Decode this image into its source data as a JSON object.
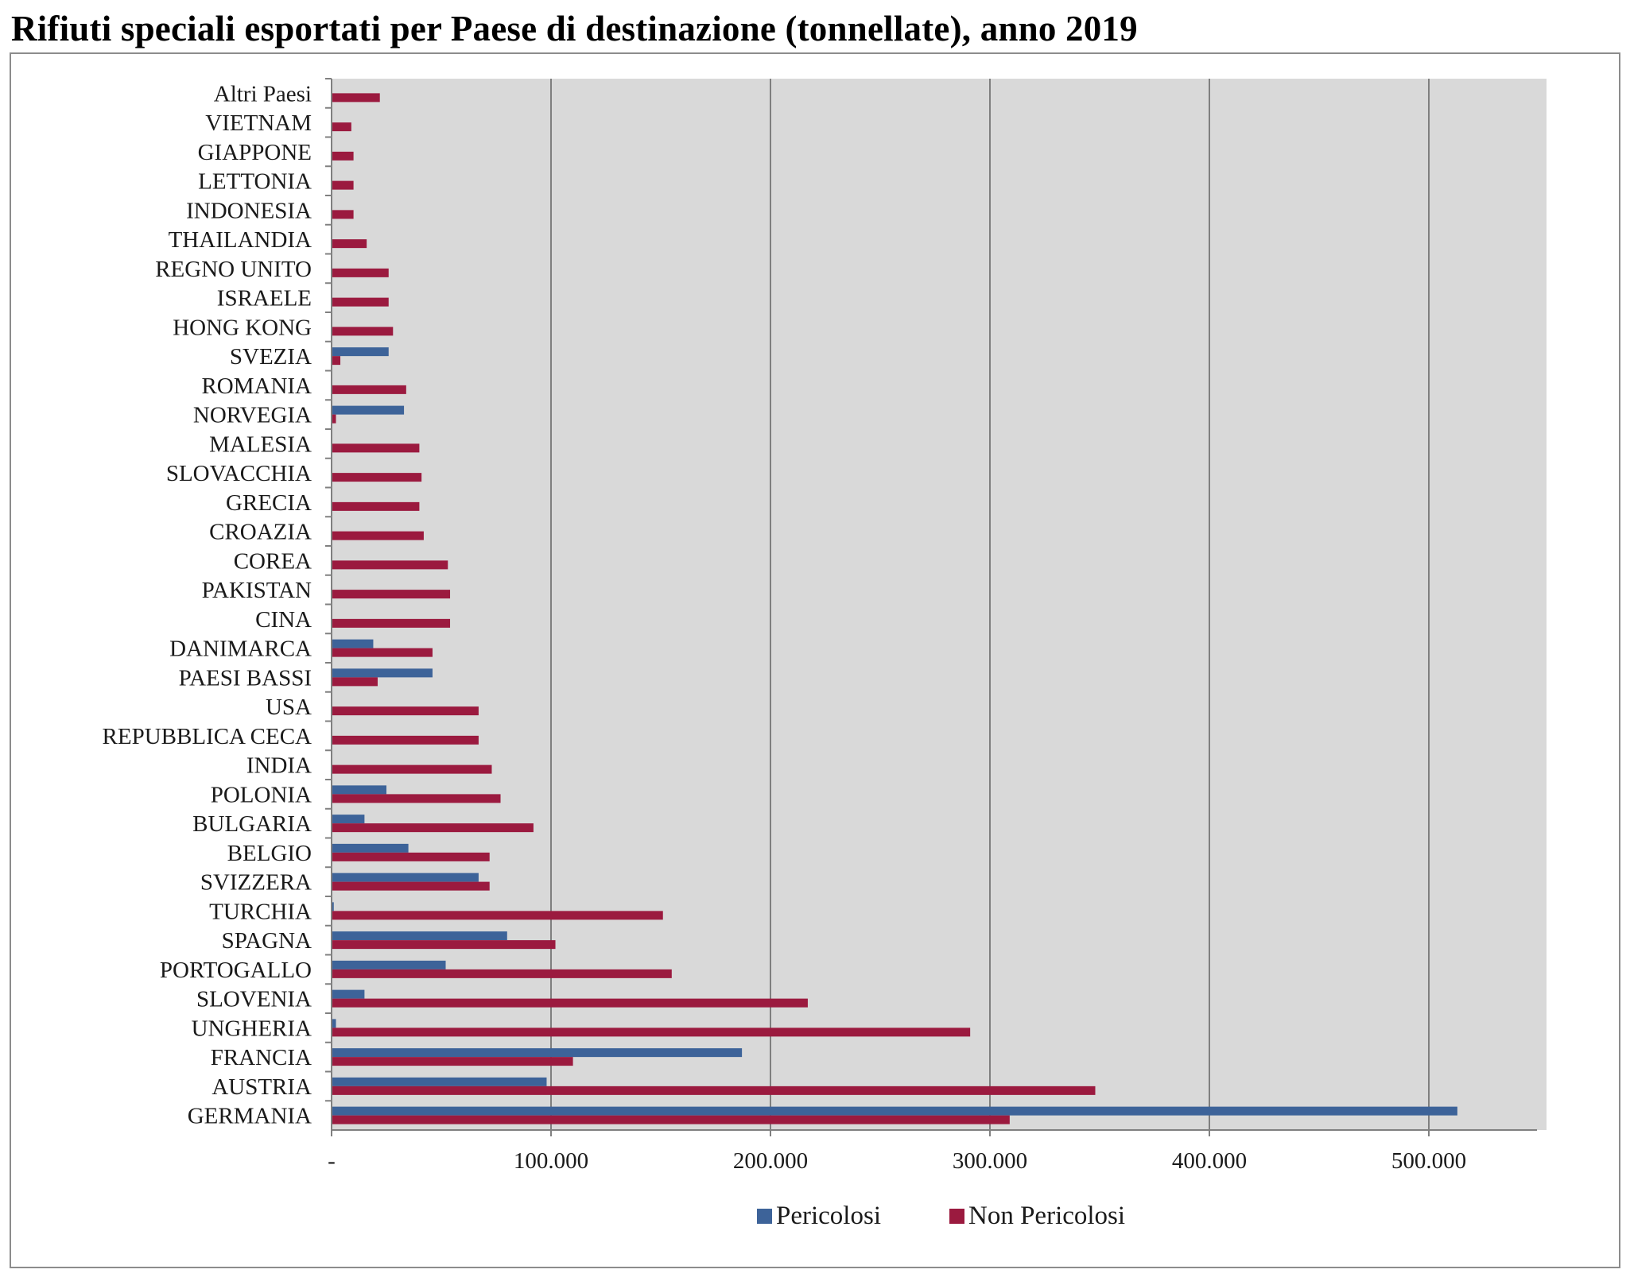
{
  "chart_data": {
    "type": "bar",
    "orientation": "horizontal",
    "title": "Rifiuti speciali esportati per Paese di destinazione (tonnellate), anno 2019",
    "xlabel": "",
    "ylabel": "",
    "xlim": [
      0,
      550000
    ],
    "x_ticks": [
      0,
      100000,
      200000,
      300000,
      400000,
      500000
    ],
    "x_tick_labels": [
      "-",
      "100.000",
      "200.000",
      "300.000",
      "400.000",
      "500.000"
    ],
    "grid": "vertical",
    "legend_position": "bottom",
    "categories": [
      "Altri Paesi",
      "VIETNAM",
      "GIAPPONE",
      "LETTONIA",
      "INDONESIA",
      "THAILANDIA",
      "REGNO UNITO",
      "ISRAELE",
      "HONG KONG",
      "SVEZIA",
      "ROMANIA",
      "NORVEGIA",
      "MALESIA",
      "SLOVACCHIA",
      "GRECIA",
      "CROAZIA",
      "COREA",
      "PAKISTAN",
      "CINA",
      "DANIMARCA",
      "PAESI BASSI",
      "USA",
      "REPUBBLICA CECA",
      "INDIA",
      "POLONIA",
      "BULGARIA",
      "BELGIO",
      "SVIZZERA",
      "TURCHIA",
      "SPAGNA",
      "PORTOGALLO",
      "SLOVENIA",
      "UNGHERIA",
      "FRANCIA",
      "AUSTRIA",
      "GERMANIA"
    ],
    "series": [
      {
        "name": "Pericolosi",
        "color": "#3d6399",
        "values": [
          0,
          0,
          0,
          0,
          0,
          0,
          0,
          0,
          0,
          26000,
          0,
          33000,
          0,
          0,
          0,
          0,
          0,
          0,
          0,
          19000,
          46000,
          0,
          0,
          0,
          25000,
          15000,
          35000,
          67000,
          1000,
          80000,
          52000,
          15000,
          2000,
          187000,
          98000,
          513000
        ]
      },
      {
        "name": "Non Pericolosi",
        "color": "#9b1a3f",
        "values": [
          22000,
          9000,
          10000,
          10000,
          10000,
          16000,
          26000,
          26000,
          28000,
          4000,
          34000,
          2000,
          40000,
          41000,
          40000,
          42000,
          53000,
          54000,
          54000,
          46000,
          21000,
          67000,
          67000,
          73000,
          77000,
          92000,
          72000,
          72000,
          151000,
          102000,
          155000,
          217000,
          291000,
          110000,
          348000,
          309000
        ]
      }
    ]
  }
}
